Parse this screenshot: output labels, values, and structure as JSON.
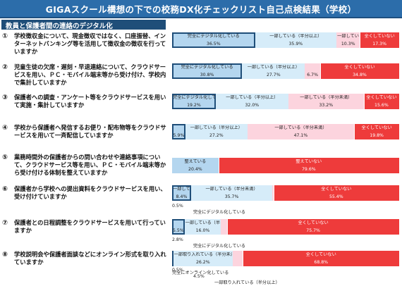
{
  "title": "GIGAスクール構想の下での校務DX化チェックリスト自己点検結果（学校）",
  "section": "教員と保護者間の連絡のデジタル化",
  "colors": {
    "full": "#b4d6ef",
    "partial_high": "#d6ecf9",
    "partial_low": "#fcd4de",
    "none": "#ee3b3b",
    "title_bg": "#2c6daa",
    "section_bg": "#1f4e79",
    "box_border": "#1f4e79"
  },
  "chart_data": {
    "type": "bar",
    "stacked": "100%",
    "categories_legend": [
      "完全にデジタル化している",
      "一部している（半分以上）",
      "一部している（半分未満）",
      "全くしていない"
    ],
    "questions": [
      {
        "num": "①",
        "text": "学校徴収金について、現金徴収ではなく、口座振替、インターネットバンキング等を活用して徴収金の徴収を行っていますか",
        "values": [
          36.5,
          35.9,
          10.3,
          17.3
        ],
        "labels": [
          "完全にデジタル化している",
          "一部している（半分以上）",
          "一部している（半分未満）",
          "全くしていない"
        ],
        "pcts": [
          "36.5%",
          "35.9%",
          "10.3%",
          "17.3%"
        ],
        "outside": []
      },
      {
        "num": "②",
        "text": "児童生徒の欠席・遅刻・早退連絡について、クラウドサービスを用い、ＰＣ・モバイル端末等から受け付け、学校内で集計していますか",
        "values": [
          30.8,
          27.7,
          6.7,
          34.8
        ],
        "labels": [
          "完全にデジタル化している",
          "一部している（半分以上）",
          "一部している（半分未満）",
          "全くしていない"
        ],
        "pcts": [
          "30.8%",
          "27.7%",
          "6.7%",
          "34.8%"
        ],
        "outside": []
      },
      {
        "num": "③",
        "text": "保護者への調査・アンケート等をクラウドサービスを用いて実施・集計していますか",
        "values": [
          19.2,
          32.0,
          33.2,
          15.6
        ],
        "labels": [
          "完全にデジタル化している",
          "一部している（半分以上）",
          "一部している（半分未満）",
          "全くしていない"
        ],
        "pcts": [
          "19.2%",
          "32.0%",
          "33.2%",
          "15.6%"
        ],
        "outside": []
      },
      {
        "num": "④",
        "text": "学校から保護者へ発信するお便り・配布物等をクラウドサービスを用いて一斉配信していますか",
        "values": [
          5.9,
          27.2,
          47.1,
          19.8
        ],
        "labels": [
          "完全にデジタル化している",
          "一部している（半分以上）",
          "一部している（半分未満）",
          "全くしていない"
        ],
        "pcts": [
          "5.9%",
          "27.2%",
          "47.1%",
          "19.8%"
        ],
        "outside": []
      },
      {
        "num": "⑤",
        "text": "業務時間外の保護者からの問い合わせや連絡事項について、クラウドサービス等を用い、ＰＣ・モバイル端末等から受け付ける体制を整えていますか",
        "values": [
          20.4,
          0,
          0,
          79.6
        ],
        "labels": [
          "整えている",
          "",
          "",
          "整えていない"
        ],
        "pcts": [
          "20.4%",
          "",
          "",
          "79.6%"
        ],
        "outside": []
      },
      {
        "num": "⑥",
        "text": "保護者から学校への提出資料をクラウドサービスを用い、受け付けていますか",
        "values": [
          8.4,
          35.7,
          0.5,
          55.4
        ],
        "labels": [
          "一部している（半分以上）",
          "一部している（半分未満）",
          "",
          "全くしていない"
        ],
        "pcts": [
          "8.4%",
          "35.7%",
          "",
          "55.4%"
        ],
        "outside": [
          "0.5%",
          "完全にデジタル化している"
        ]
      },
      {
        "num": "⑦",
        "text": "保護者との日程調整をクラウドサービスを用いて行っていますか",
        "values": [
          5.5,
          16.0,
          2.8,
          75.7
        ],
        "labels": [
          "一部している（半分以上）",
          "一部している（半分未満）",
          "",
          "全くしていない"
        ],
        "pcts": [
          "5.5%",
          "16.0%",
          "",
          "75.7%"
        ],
        "outside": [
          "2.8%",
          "完全にデジタル化している"
        ]
      },
      {
        "num": "⑧",
        "text": "学校説明会や保護者面談などにオンライン形式を取り入れていますか",
        "values": [
          0.5,
          26.2,
          4.5,
          68.8
        ],
        "labels": [
          "",
          "一部取り入れている（半分未満）",
          "",
          "全くしていない"
        ],
        "pcts": [
          "0.5%",
          "26.2%",
          "",
          "68.8%"
        ],
        "outside": [
          "完全にオンライン化している",
          "4.5%",
          "一部取り入れている（半分以上）"
        ]
      }
    ]
  }
}
